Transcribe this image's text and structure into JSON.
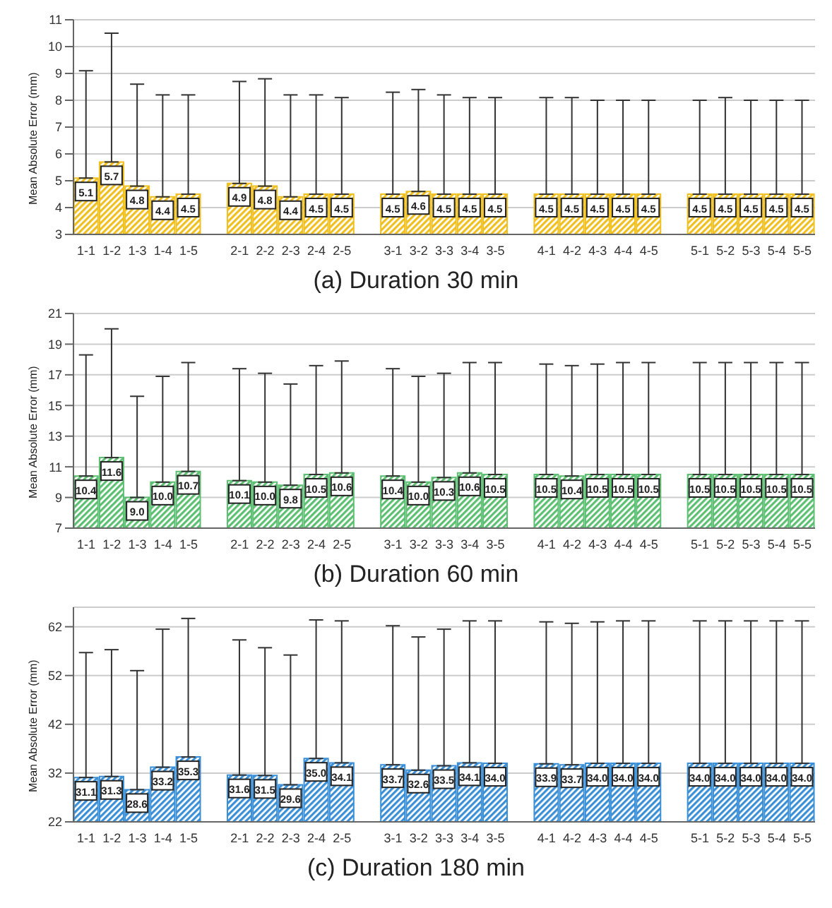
{
  "chart_data": [
    {
      "type": "bar",
      "title": "(a) Duration 30 min",
      "ylabel": "Mean Absolute Error (mm)",
      "categories": [
        "1-1",
        "1-2",
        "1-3",
        "1-4",
        "1-5",
        null,
        "2-1",
        "2-2",
        "2-3",
        "2-4",
        "2-5",
        null,
        "3-1",
        "3-2",
        "3-3",
        "3-4",
        "3-5",
        null,
        "4-1",
        "4-2",
        "4-3",
        "4-4",
        "4-5",
        null,
        "5-1",
        "5-2",
        "5-3",
        "5-4",
        "5-5"
      ],
      "series": [
        {
          "color": "#f0c020",
          "values": [
            5.1,
            5.7,
            4.8,
            4.4,
            4.5,
            null,
            4.9,
            4.8,
            4.4,
            4.5,
            4.5,
            null,
            4.5,
            4.6,
            4.5,
            4.5,
            4.5,
            null,
            4.5,
            4.5,
            4.5,
            4.5,
            4.5,
            null,
            4.5,
            4.5,
            4.5,
            4.5,
            4.5
          ],
          "value_labels": [
            "5.1",
            "5.7",
            "4.8",
            "4.4",
            "4.5",
            null,
            "4.9",
            "4.8",
            "4.4",
            "4.5",
            "4.5",
            null,
            "4.5",
            "4.6",
            "4.5",
            "4.5",
            "4.5",
            null,
            "4.5",
            "4.5",
            "4.5",
            "4.5",
            "4.5",
            null,
            "4.5",
            "4.5",
            "4.5",
            "4.5",
            "4.5"
          ],
          "errors": [
            [
              5.1,
              9.1
            ],
            [
              5.7,
              10.5
            ],
            [
              4.8,
              8.6
            ],
            [
              4.4,
              8.2
            ],
            [
              4.5,
              8.2
            ],
            null,
            [
              4.9,
              8.7
            ],
            [
              4.8,
              8.8
            ],
            [
              4.4,
              8.2
            ],
            [
              4.5,
              8.2
            ],
            [
              4.5,
              8.1
            ],
            null,
            [
              4.5,
              8.3
            ],
            [
              4.6,
              8.4
            ],
            [
              4.5,
              8.2
            ],
            [
              4.5,
              8.1
            ],
            [
              4.5,
              8.1
            ],
            null,
            [
              4.5,
              8.1
            ],
            [
              4.5,
              8.1
            ],
            [
              4.5,
              8.0
            ],
            [
              4.5,
              8.0
            ],
            [
              4.5,
              8.0
            ],
            null,
            [
              4.5,
              8.0
            ],
            [
              4.5,
              8.1
            ],
            [
              4.5,
              8.0
            ],
            [
              4.5,
              8.0
            ],
            [
              4.5,
              8.0
            ]
          ]
        }
      ],
      "ylim": [
        3,
        11
      ],
      "yticks": [
        3,
        4,
        5,
        6,
        7,
        8,
        9,
        10,
        11
      ],
      "grid": "y",
      "legend": false
    },
    {
      "type": "bar",
      "title": "(b) Duration 60 min",
      "ylabel": "Mean Absolute Error (mm)",
      "categories": [
        "1-1",
        "1-2",
        "1-3",
        "1-4",
        "1-5",
        null,
        "2-1",
        "2-2",
        "2-3",
        "2-4",
        "2-5",
        null,
        "3-1",
        "3-2",
        "3-3",
        "3-4",
        "3-5",
        null,
        "4-1",
        "4-2",
        "4-3",
        "4-4",
        "4-5",
        null,
        "5-1",
        "5-2",
        "5-3",
        "5-4",
        "5-5"
      ],
      "series": [
        {
          "color": "#5cbf72",
          "values": [
            10.4,
            11.6,
            9.0,
            10.0,
            10.7,
            null,
            10.1,
            10.0,
            9.8,
            10.5,
            10.6,
            null,
            10.4,
            10.0,
            10.3,
            10.6,
            10.5,
            null,
            10.5,
            10.4,
            10.5,
            10.5,
            10.5,
            null,
            10.5,
            10.5,
            10.5,
            10.5,
            10.5
          ],
          "value_labels": [
            "10.4",
            "11.6",
            "9.0",
            "10.0",
            "10.7",
            null,
            "10.1",
            "10.0",
            "9.8",
            "10.5",
            "10.6",
            null,
            "10.4",
            "10.0",
            "10.3",
            "10.6",
            "10.5",
            null,
            "10.5",
            "10.4",
            "10.5",
            "10.5",
            "10.5",
            null,
            "10.5",
            "10.5",
            "10.5",
            "10.5",
            "10.5"
          ],
          "errors": [
            [
              10.4,
              18.3
            ],
            [
              11.6,
              20.0
            ],
            [
              9.0,
              15.6
            ],
            [
              10.0,
              16.9
            ],
            [
              10.7,
              17.8
            ],
            null,
            [
              10.1,
              17.4
            ],
            [
              10.0,
              17.1
            ],
            [
              9.8,
              16.4
            ],
            [
              10.5,
              17.6
            ],
            [
              10.6,
              17.9
            ],
            null,
            [
              10.4,
              17.4
            ],
            [
              10.0,
              16.9
            ],
            [
              10.3,
              17.1
            ],
            [
              10.6,
              17.8
            ],
            [
              10.5,
              17.8
            ],
            null,
            [
              10.5,
              17.7
            ],
            [
              10.4,
              17.6
            ],
            [
              10.5,
              17.7
            ],
            [
              10.5,
              17.8
            ],
            [
              10.5,
              17.8
            ],
            null,
            [
              10.5,
              17.8
            ],
            [
              10.5,
              17.8
            ],
            [
              10.5,
              17.8
            ],
            [
              10.5,
              17.8
            ],
            [
              10.5,
              17.8
            ]
          ]
        }
      ],
      "ylim": [
        7,
        21
      ],
      "yticks": [
        7,
        9,
        11,
        13,
        15,
        17,
        19,
        21
      ],
      "grid": "y",
      "legend": false
    },
    {
      "type": "bar",
      "title": "(c) Duration 180 min",
      "ylabel": "Mean Absolute Error (mm)",
      "categories": [
        "1-1",
        "1-2",
        "1-3",
        "1-4",
        "1-5",
        null,
        "2-1",
        "2-2",
        "2-3",
        "2-4",
        "2-5",
        null,
        "3-1",
        "3-2",
        "3-3",
        "3-4",
        "3-5",
        null,
        "4-1",
        "4-2",
        "4-3",
        "4-4",
        "4-5",
        null,
        "5-1",
        "5-2",
        "5-3",
        "5-4",
        "5-5"
      ],
      "series": [
        {
          "color": "#3a8fd6",
          "values": [
            31.1,
            31.3,
            28.6,
            33.2,
            35.3,
            null,
            31.6,
            31.5,
            29.6,
            35.0,
            34.1,
            null,
            33.7,
            32.6,
            33.5,
            34.1,
            34.0,
            null,
            33.9,
            33.7,
            34.0,
            34.0,
            34.0,
            null,
            34.0,
            34.0,
            34.0,
            34.0,
            34.0
          ],
          "value_labels": [
            "31.1",
            "31.3",
            "28.6",
            "33.2",
            "35.3",
            null,
            "31.6",
            "31.5",
            "29.6",
            "35.0",
            "34.1",
            null,
            "33.7",
            "32.6",
            "33.5",
            "34.1",
            "34.0",
            null,
            "33.9",
            "33.7",
            "34.0",
            "34.0",
            "34.0",
            null,
            "34.0",
            "34.0",
            "34.0",
            "34.0",
            "34.0"
          ],
          "errors": [
            [
              31.1,
              56.7
            ],
            [
              31.3,
              57.3
            ],
            [
              28.6,
              53.0
            ],
            [
              33.2,
              61.5
            ],
            [
              35.3,
              63.7
            ],
            null,
            [
              31.6,
              59.3
            ],
            [
              31.5,
              57.7
            ],
            [
              29.6,
              56.2
            ],
            [
              35.0,
              63.4
            ],
            [
              34.1,
              63.2
            ],
            null,
            [
              33.7,
              62.2
            ],
            [
              32.6,
              59.9
            ],
            [
              33.5,
              61.5
            ],
            [
              34.1,
              63.2
            ],
            [
              34.0,
              63.2
            ],
            null,
            [
              33.9,
              63.0
            ],
            [
              33.7,
              62.7
            ],
            [
              34.0,
              63.0
            ],
            [
              34.0,
              63.2
            ],
            [
              34.0,
              63.2
            ],
            null,
            [
              34.0,
              63.2
            ],
            [
              34.0,
              63.2
            ],
            [
              34.0,
              63.2
            ],
            [
              34.0,
              63.2
            ],
            [
              34.0,
              63.2
            ]
          ]
        }
      ],
      "ylim": [
        22,
        66
      ],
      "yticks": [
        22,
        32,
        42,
        52,
        62
      ],
      "grid": "y",
      "legend": false
    }
  ]
}
